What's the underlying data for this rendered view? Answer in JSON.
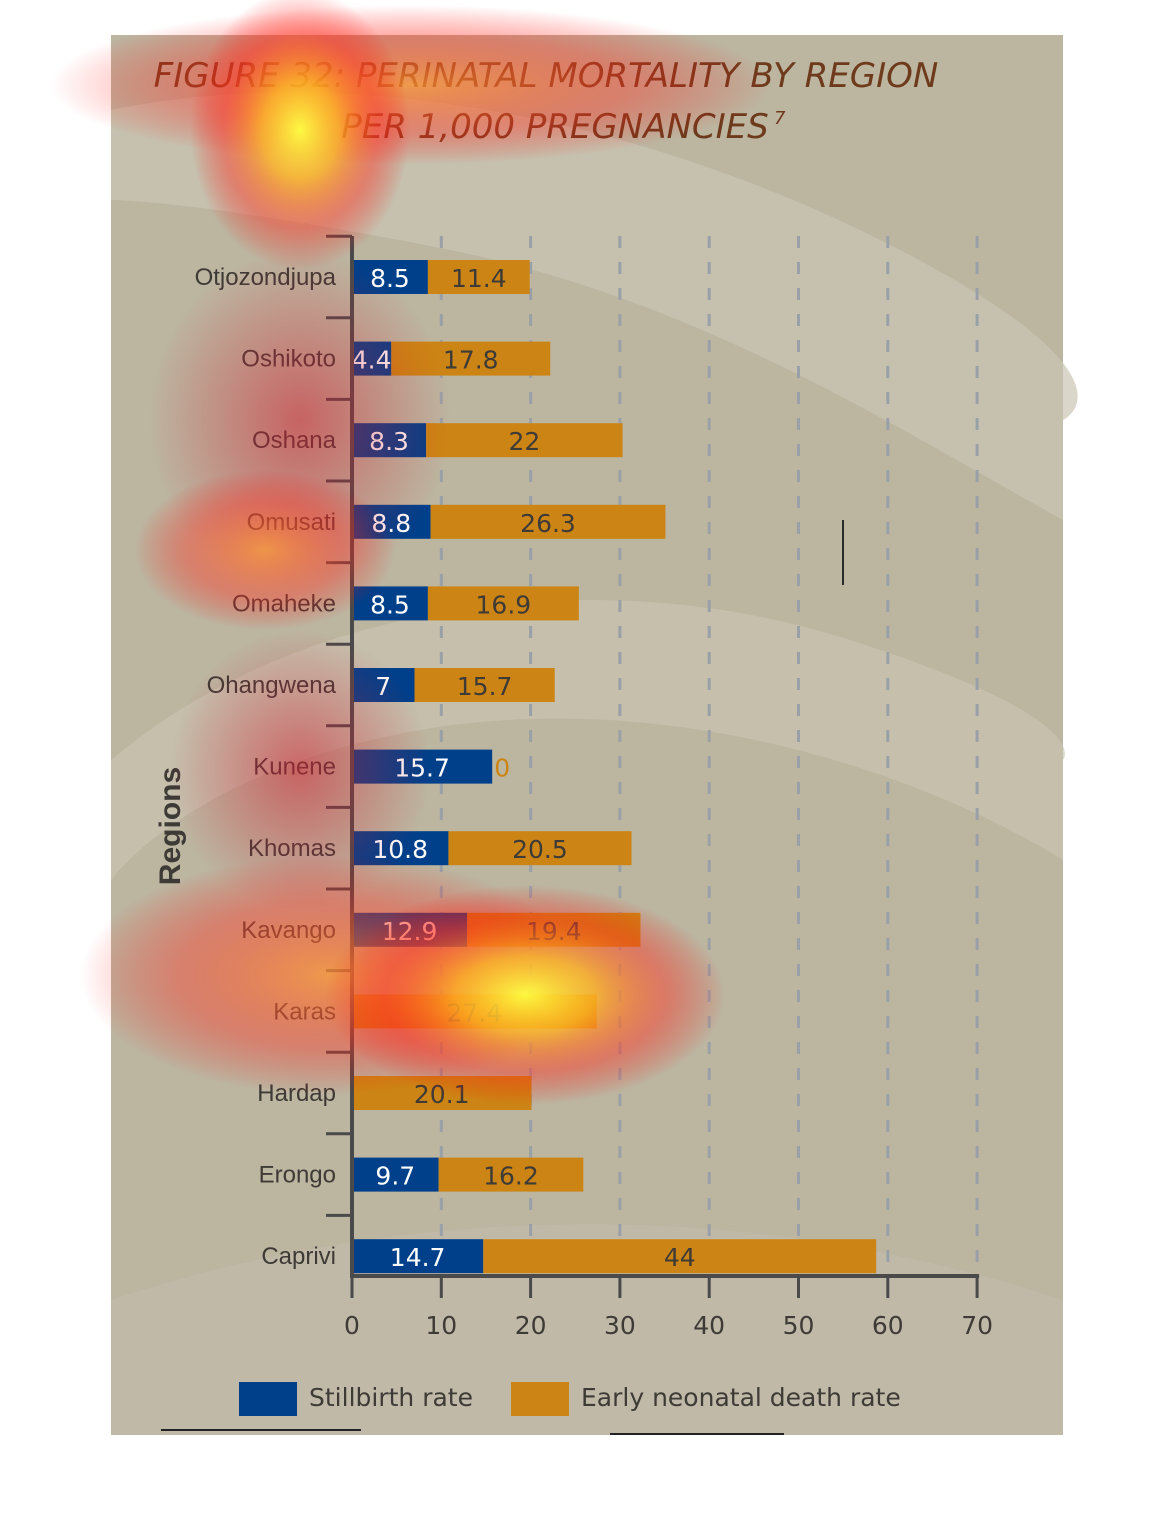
{
  "chart_data": {
    "type": "bar",
    "orientation": "horizontal",
    "stacked": true,
    "title": "FIGURE 32: PERINATAL MORTALITY BY REGION",
    "subtitle": "PER 1,000 PREGNANCIES",
    "title_superscript": "7",
    "ylabel": "Regions",
    "xlabel": "",
    "xlim": [
      0,
      70
    ],
    "xticks": [
      0,
      10,
      20,
      30,
      40,
      50,
      60,
      70
    ],
    "grid": "vertical dashed",
    "legend_position": "bottom",
    "categories": [
      "Otjozondjupa",
      "Oshikoto",
      "Oshana",
      "Omusati",
      "Omaheke",
      "Ohangwena",
      "Kunene",
      "Khomas",
      "Kavango",
      "Karas",
      "Hardap",
      "Erongo",
      "Caprivi"
    ],
    "series": [
      {
        "name": "Stillbirth rate",
        "color": "#003f8a",
        "label_color": "#ffffff",
        "values": [
          8.5,
          4.4,
          8.3,
          8.8,
          8.5,
          7,
          15.7,
          10.8,
          12.9,
          0,
          0,
          9.7,
          14.7
        ]
      },
      {
        "name": "Early neonatal death rate",
        "color": "#cc8514",
        "label_color": "#3e3a36",
        "values": [
          11.4,
          17.8,
          22,
          26.3,
          16.9,
          15.7,
          0,
          20.5,
          19.4,
          27.4,
          20.1,
          16.2,
          44
        ]
      }
    ]
  },
  "colors": {
    "background": "#bcb5a0",
    "axis": "#4a4a4a",
    "grid": "#9aa0a8",
    "title": "#6e3a1c"
  }
}
